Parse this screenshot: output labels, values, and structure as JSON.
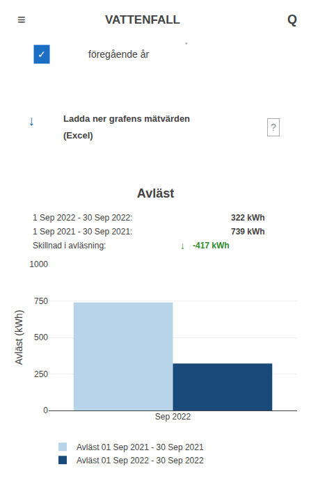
{
  "chart_data": {
    "type": "bar",
    "title": "Avläst",
    "categories": [
      "Sep 2022"
    ],
    "series": [
      {
        "name": "Avläst 01 Sep 2021 - 30 Sep 2021",
        "color": "#b8d4e8",
        "values": [
          739
        ]
      },
      {
        "name": "Avläst 01 Sep 2022 - 30 Sep 2022",
        "color": "#1a4a7a",
        "values": [
          322
        ]
      }
    ],
    "ylabel": "Avläst (kWh)",
    "ylim": [
      0,
      1000
    ],
    "yticks": [
      0,
      250,
      500,
      750,
      1000
    ],
    "grid": true,
    "legend": "bottom",
    "annotations": [
      {
        "text": "≡"
      },
      {
        "text": "VATTENFALL"
      },
      {
        "text": "Q"
      },
      {
        "text": "✓",
        "color": "#1a6fc4"
      },
      {
        "text": "föregående år"
      },
      {
        "text": "•"
      },
      {
        "text": "↓",
        "color": "#1a6fc4"
      },
      {
        "text": "Ladda ner grafens mätvärden"
      },
      {
        "text": "(Excel)"
      },
      {
        "text": "?"
      },
      {
        "text": "1 Sep 2022 - 30 Sep 2022: "
      },
      {
        "text": "322 kWh"
      },
      {
        "text": "1 Sep 2021 - 30 Sep 2021: "
      },
      {
        "text": "739 kWh"
      },
      {
        "text": "Skillnad i avläsning: "
      },
      {
        "text": "↓",
        "color": "#2e8b2e"
      },
      {
        "text": "-417 kWh",
        "color": "#2e8b2e"
      }
    ]
  }
}
